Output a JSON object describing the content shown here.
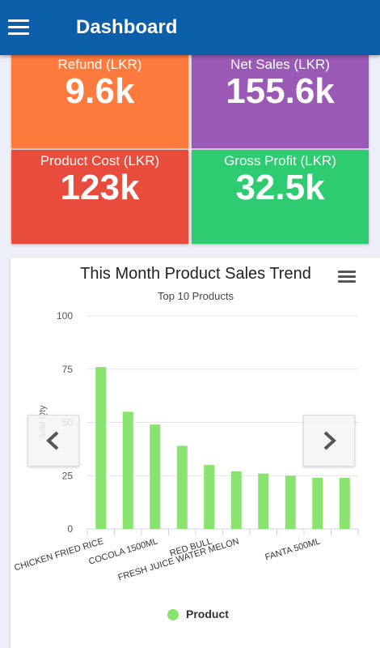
{
  "appbar": {
    "title": "Dashboard"
  },
  "tiles": {
    "refund": {
      "label": "Refund (LKR)",
      "value": "9.6k",
      "color": "#ff7a3d"
    },
    "net_sales": {
      "label": "Net Sales (LKR)",
      "value": "155.6k",
      "color": "#9b59b6"
    },
    "product_cost": {
      "label": "Product Cost (LKR)",
      "value": "123k",
      "color": "#e74c3c"
    },
    "gross_profit": {
      "label": "Gross Profit (LKR)",
      "value": "32.5k",
      "color": "#2ecc71"
    }
  },
  "chart_data": {
    "type": "bar",
    "title": "This Month Product Sales Trend",
    "subtitle": "Top 10 Products",
    "ylabel": "Sold Qty",
    "xlabel": "",
    "ylim": [
      0,
      100
    ],
    "yticks": [
      0,
      25,
      50,
      75,
      100
    ],
    "categories": [
      "CHICKEN FRIED RICE",
      "",
      "COCOLA 1500ML",
      "",
      "RED BULL",
      "FRESH JUICE WATER MELON",
      "",
      "",
      "FANTA 500ML",
      ""
    ],
    "series": [
      {
        "name": "Product",
        "color": "#8be36f",
        "values": [
          76,
          55,
          49,
          39,
          30,
          27,
          26,
          25,
          24,
          24
        ]
      }
    ],
    "legend": "bottom-center",
    "grid": true
  }
}
